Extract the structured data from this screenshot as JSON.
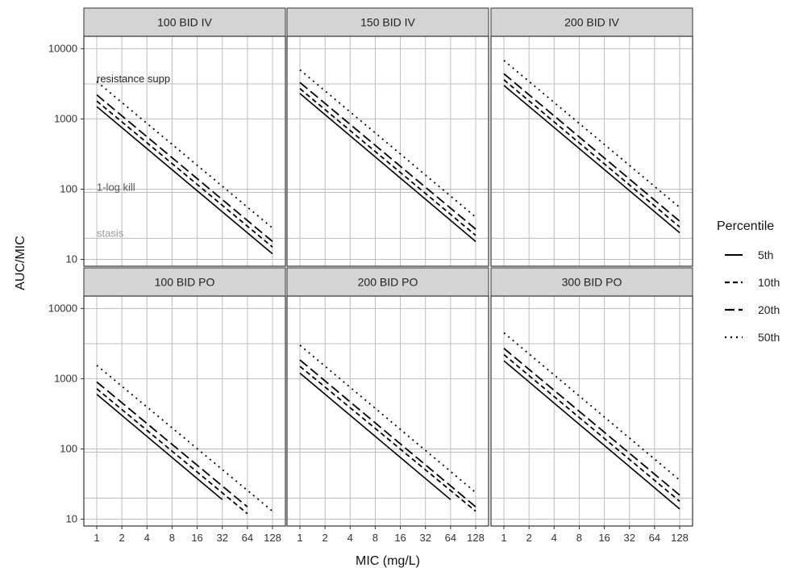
{
  "chart_data": {
    "type": "line",
    "xlabel": "MIC (mg/L)",
    "ylabel": "AUC/MIC",
    "x_scale": "log2",
    "y_scale": "log10",
    "xlim": [
      1,
      128
    ],
    "ylim": [
      8,
      15000
    ],
    "x_ticks": [
      1,
      2,
      4,
      8,
      16,
      32,
      64,
      128
    ],
    "y_ticks": [
      10,
      100,
      1000,
      10000
    ],
    "grid": true,
    "legend": {
      "title": "Percentile",
      "placement": "right",
      "entries": [
        "5th",
        "10th",
        "20th",
        "50th"
      ]
    },
    "reference_lines": [
      {
        "label": "resistance supp",
        "y": 3150,
        "color": "#222222"
      },
      {
        "label": "1-log kill",
        "y": 90,
        "color": "#555555"
      },
      {
        "label": "stasis",
        "y": 20,
        "color": "#999999"
      }
    ],
    "panels": [
      {
        "title": "100 BID IV",
        "series": [
          {
            "name": "5th",
            "x": [
              1,
              128
            ],
            "y": [
              1500,
              12
            ]
          },
          {
            "name": "10th",
            "x": [
              1,
              128
            ],
            "y": [
              1800,
              15
            ]
          },
          {
            "name": "20th",
            "x": [
              1,
              128
            ],
            "y": [
              2200,
              18
            ]
          },
          {
            "name": "50th",
            "x": [
              1,
              128
            ],
            "y": [
              3400,
              28
            ]
          }
        ]
      },
      {
        "title": "150 BID IV",
        "series": [
          {
            "name": "5th",
            "x": [
              1,
              128
            ],
            "y": [
              2300,
              18
            ]
          },
          {
            "name": "10th",
            "x": [
              1,
              128
            ],
            "y": [
              2700,
              22
            ]
          },
          {
            "name": "20th",
            "x": [
              1,
              128
            ],
            "y": [
              3300,
              27
            ]
          },
          {
            "name": "50th",
            "x": [
              1,
              128
            ],
            "y": [
              5000,
              40
            ]
          }
        ]
      },
      {
        "title": "200 BID IV",
        "series": [
          {
            "name": "5th",
            "x": [
              1,
              128
            ],
            "y": [
              3000,
              24
            ]
          },
          {
            "name": "10th",
            "x": [
              1,
              128
            ],
            "y": [
              3600,
              29
            ]
          },
          {
            "name": "20th",
            "x": [
              1,
              128
            ],
            "y": [
              4400,
              35
            ]
          },
          {
            "name": "50th",
            "x": [
              1,
              128
            ],
            "y": [
              6800,
              55
            ]
          }
        ]
      },
      {
        "title": "100 BID PO",
        "series": [
          {
            "name": "5th",
            "x": [
              1,
              32
            ],
            "y": [
              600,
              19
            ]
          },
          {
            "name": "10th",
            "x": [
              1,
              64
            ],
            "y": [
              720,
              12
            ]
          },
          {
            "name": "20th",
            "x": [
              1,
              64
            ],
            "y": [
              900,
              15
            ]
          },
          {
            "name": "50th",
            "x": [
              1,
              128
            ],
            "y": [
              1550,
              13
            ]
          }
        ]
      },
      {
        "title": "200 BID PO",
        "series": [
          {
            "name": "5th",
            "x": [
              1,
              64
            ],
            "y": [
              1200,
              19
            ]
          },
          {
            "name": "10th",
            "x": [
              1,
              128
            ],
            "y": [
              1500,
              13
            ]
          },
          {
            "name": "20th",
            "x": [
              1,
              128
            ],
            "y": [
              1850,
              15
            ]
          },
          {
            "name": "50th",
            "x": [
              1,
              128
            ],
            "y": [
              3000,
              24
            ]
          }
        ]
      },
      {
        "title": "300 BID PO",
        "series": [
          {
            "name": "5th",
            "x": [
              1,
              128
            ],
            "y": [
              1800,
              14
            ]
          },
          {
            "name": "10th",
            "x": [
              1,
              128
            ],
            "y": [
              2200,
              18
            ]
          },
          {
            "name": "20th",
            "x": [
              1,
              128
            ],
            "y": [
              2700,
              22
            ]
          },
          {
            "name": "50th",
            "x": [
              1,
              128
            ],
            "y": [
              4500,
              36
            ]
          }
        ]
      }
    ]
  },
  "series_styles": {
    "5th": {
      "dash": "",
      "width": 1.6
    },
    "10th": {
      "dash": "6,4",
      "width": 1.8
    },
    "20th": {
      "dash": "12,5",
      "width": 1.8
    },
    "50th": {
      "dash": "2,5",
      "width": 1.8
    }
  },
  "colors": {
    "strip_fill": "#d4d4d4",
    "frame": "#333333",
    "grid": "#bdbdbd",
    "line": "#000000"
  }
}
